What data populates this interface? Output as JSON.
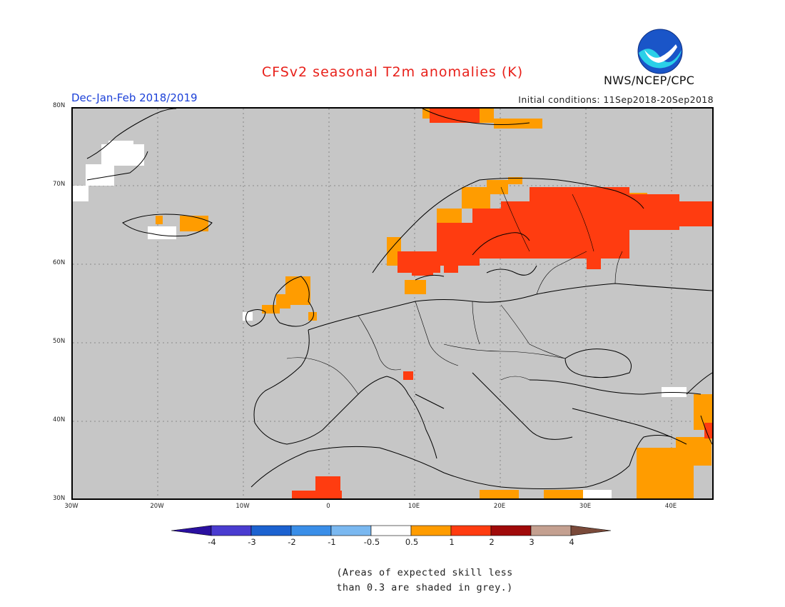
{
  "title": "CFSv2 seasonal T2m anomalies (K)",
  "season": "Dec-Jan-Feb 2018/2019",
  "initial_conditions": "Initial conditions: 11Sep2018-20Sep2018",
  "agency": "NWS/NCEP/CPC",
  "logo_icon": "noaa-logo-icon",
  "map": {
    "lon_range": [
      -30,
      45
    ],
    "lat_range": [
      30,
      80
    ],
    "lat_labels": [
      "30N",
      "40N",
      "50N",
      "60N",
      "70N",
      "80N"
    ],
    "lon_labels": [
      "30W",
      "20W",
      "10W",
      "0",
      "10E",
      "20E",
      "30E",
      "40E"
    ],
    "background_color": "#c6c6c6"
  },
  "colorbar": {
    "labels": [
      "-4",
      "-3",
      "-2",
      "-1",
      "-0.5",
      "0.5",
      "1",
      "2",
      "3",
      "4"
    ],
    "colors": [
      "#2a10a0",
      "#4a3cd0",
      "#1c62d0",
      "#3a8ee8",
      "#7ab8f0",
      "#ffffff",
      "#ff9c00",
      "#ff3c10",
      "#a00a0a",
      "#c4a090",
      "#7a4a3a"
    ]
  },
  "note_line1": "(Areas of expected skill less",
  "note_line2": "than 0.3 are shaded in grey.)"
}
